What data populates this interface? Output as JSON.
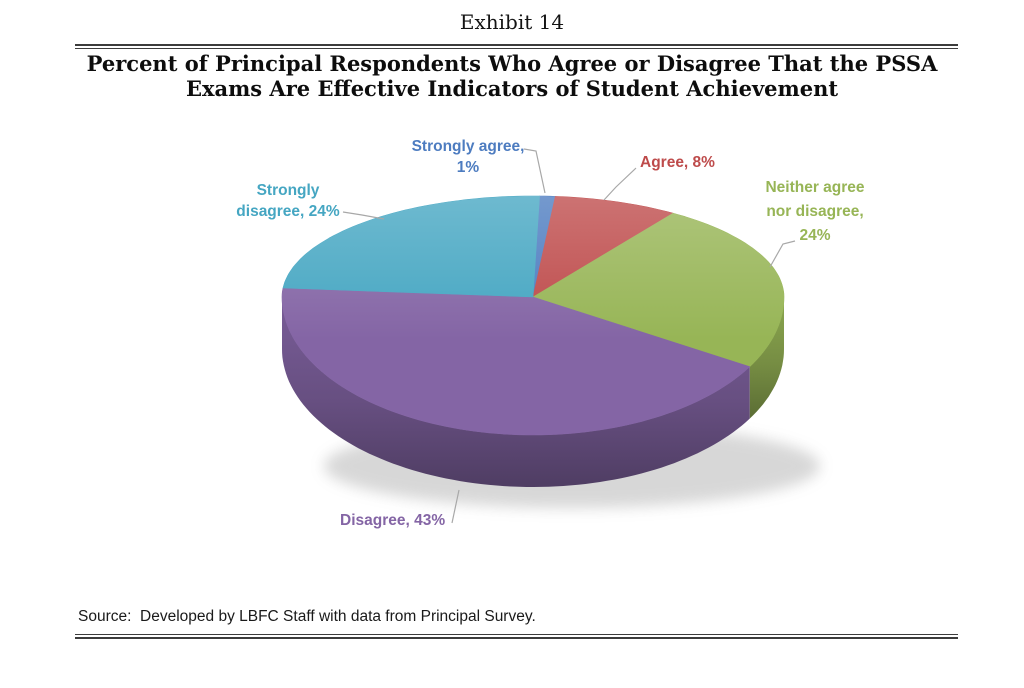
{
  "page": {
    "exhibit_label": "Exhibit 14",
    "title_line1": "Percent of Principal Respondents Who Agree or Disagree That the PSSA",
    "title_line2": "Exams Are Effective Indicators of Student Achievement",
    "source_text": "Source:  Developed by LBFC Staff with data from Principal Survey."
  },
  "chart_data": {
    "type": "pie",
    "style": "3d",
    "title": "Percent of Principal Respondents Who Agree or Disagree That the PSSA Exams Are Effective Indicators of Student Achievement",
    "categories": [
      "Strongly agree",
      "Agree",
      "Neither agree nor disagree",
      "Disagree",
      "Strongly disagree"
    ],
    "values": [
      1,
      8,
      24,
      43,
      24
    ],
    "unit": "%",
    "colors": [
      "#4d7cc0",
      "#be4b4b",
      "#97b556",
      "#8465a5",
      "#45a6c2"
    ],
    "label_texts": [
      "Strongly agree,\n1%",
      "Agree, 8%",
      "Neither agree\nnor disagree,\n24%",
      "Disagree, 43%",
      "Strongly\ndisagree, 24%"
    ],
    "start_angle_deg": 1.5,
    "clockwise": true,
    "legend": "none",
    "leader_line_color": "#a8a8a8"
  }
}
